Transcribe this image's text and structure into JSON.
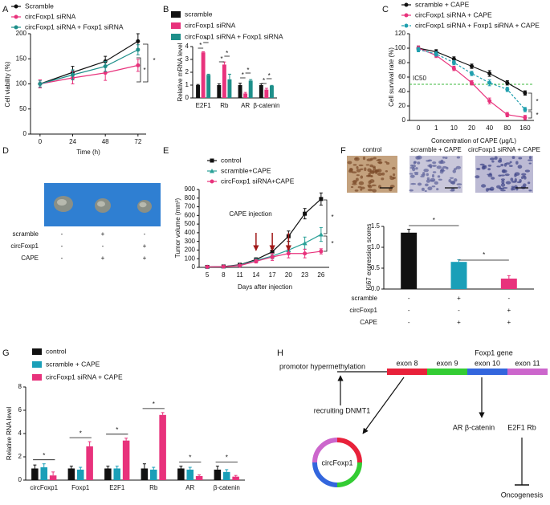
{
  "panel_labels": [
    "A",
    "B",
    "C",
    "D",
    "E",
    "F",
    "G",
    "H"
  ],
  "chart_data": [
    {
      "type": "line",
      "legend": "top",
      "y_label": "Cell viability (%)",
      "x_label": "Time (h)",
      "x": [
        0,
        24,
        48,
        72
      ],
      "xlim": [
        -7,
        78
      ],
      "xticks": [
        0,
        24,
        48,
        72
      ],
      "ylim": [
        0,
        200
      ],
      "yticks": [
        0,
        50,
        100,
        150,
        200
      ],
      "series": [
        {
          "name": "Scramble",
          "color": "#111111",
          "marker": "circle",
          "values": [
            100,
            123,
            145,
            185
          ],
          "errors": [
            8,
            12,
            10,
            15
          ]
        },
        {
          "name": "circFoxp1 siRNA",
          "color": "#e8327c",
          "marker": "circle",
          "values": [
            100,
            112,
            122,
            137
          ],
          "errors": [
            8,
            12,
            15,
            12
          ]
        },
        {
          "name": "circFoxp1 siRNA + Foxp1 siRNA",
          "color": "#1e8f8a",
          "marker": "circle",
          "values": [
            100,
            118,
            135,
            168
          ],
          "errors": [
            6,
            10,
            10,
            10
          ]
        }
      ],
      "significance": [
        "*",
        "*"
      ]
    },
    {
      "type": "bar",
      "legend": "top",
      "y_label": "Relative mRNA level",
      "categories": [
        "E2F1",
        "Rb",
        "AR",
        "β-catenin"
      ],
      "ylim": [
        0,
        4
      ],
      "yticks": [
        0,
        1,
        2,
        3,
        4
      ],
      "series": [
        {
          "name": "scramble",
          "color": "#111111",
          "values": [
            1,
            1,
            1,
            1
          ],
          "errors": [
            0.05,
            0.1,
            0.15,
            0.1
          ]
        },
        {
          "name": "circFoxp1 siRNA",
          "color": "#e8327c",
          "values": [
            3.55,
            2.6,
            0.35,
            0.65
          ],
          "errors": [
            0.05,
            0.2,
            0.08,
            0.1
          ]
        },
        {
          "name": "circFoxp1 siRNA + Foxp1 siRNA",
          "color": "#1e8f8a",
          "values": [
            1.8,
            1.45,
            1.35,
            0.95
          ],
          "errors": [
            0.05,
            0.4,
            0.08,
            0.03
          ]
        }
      ],
      "significance": [
        "*",
        "*",
        "*",
        "*",
        "*",
        "*",
        "*",
        "*"
      ]
    },
    {
      "type": "line",
      "legend": "top",
      "y_label": "Cell survival rate (%)",
      "x_label": "Concentration of CAPE (μg/L)",
      "categories": [
        "0",
        "1",
        "10",
        "20",
        "40",
        "80",
        "160"
      ],
      "ylim": [
        0,
        120
      ],
      "yticks": [
        0,
        20,
        40,
        60,
        80,
        100,
        120
      ],
      "reference_line": {
        "value": 50,
        "label": "IC50",
        "color": "#3cb83c"
      },
      "series": [
        {
          "name": "scramble + CAPE",
          "color": "#111111",
          "marker": "circle",
          "values": [
            100,
            95,
            85,
            75,
            65,
            52,
            38
          ],
          "errors": [
            3,
            3,
            3,
            3,
            4,
            3,
            3
          ]
        },
        {
          "name": "circFoxp1 siRNA + CAPE",
          "color": "#e8327c",
          "marker": "circle",
          "values": [
            100,
            90,
            72,
            52,
            27,
            8,
            4
          ],
          "errors": [
            3,
            3,
            3,
            3,
            4,
            3,
            3
          ]
        },
        {
          "name": "circFoxp1 siRNA + Foxp1 siRNA + CAPE",
          "color": "#1f9fae",
          "marker": "circle",
          "dashed": true,
          "values": [
            98,
            92,
            80,
            65,
            52,
            43,
            15
          ],
          "errors": [
            3,
            3,
            3,
            3,
            4,
            3,
            3
          ]
        }
      ],
      "significance": [
        "*",
        "*"
      ]
    },
    {
      "type": "line",
      "legend": "top",
      "y_label": "Tumor volume (mm³)",
      "x_label": "Days after injection",
      "categories": [
        "5",
        "8",
        "11",
        "14",
        "17",
        "20",
        "23",
        "26"
      ],
      "ylim": [
        0,
        900
      ],
      "yticks": [
        0,
        100,
        200,
        300,
        400,
        500,
        600,
        700,
        800,
        900
      ],
      "annotation": "CAPE injection",
      "series": [
        {
          "name": "control",
          "color": "#111111",
          "marker": "square",
          "values": [
            5,
            10,
            30,
            90,
            180,
            360,
            620,
            790
          ],
          "errors": [
            3,
            5,
            10,
            20,
            40,
            60,
            60,
            70
          ]
        },
        {
          "name": "scramble+CAPE",
          "color": "#2aa198",
          "marker": "triangle",
          "values": [
            5,
            10,
            25,
            80,
            130,
            200,
            280,
            380
          ],
          "errors": [
            3,
            5,
            10,
            20,
            30,
            50,
            70,
            80
          ]
        },
        {
          "name": "circFoxp1 siRNA+CAPE",
          "color": "#e8327c",
          "marker": "circle",
          "values": [
            5,
            8,
            20,
            70,
            120,
            160,
            160,
            185
          ],
          "errors": [
            3,
            5,
            10,
            20,
            40,
            50,
            50,
            30
          ]
        }
      ],
      "significance": [
        "*",
        "*"
      ]
    },
    {
      "type": "bar",
      "y_label": "Ki67 expression scores",
      "image_labels": [
        "control",
        "scramble + CAPE",
        "circFoxp1 siRNA + CAPE"
      ],
      "categories": [
        null,
        null,
        null
      ],
      "values": [
        1.35,
        0.65,
        0.25
      ],
      "errors": [
        0.08,
        0.05,
        0.07
      ],
      "colors": [
        "#111111",
        "#1a9fb8",
        "#e8327c"
      ],
      "ylim": [
        0,
        1.5
      ],
      "yticks": [
        {
          "value": 0,
          "label": "0.0"
        },
        0.5,
        {
          "value": 1,
          "label": "1.0"
        },
        1.5
      ],
      "conditions": [
        {
          "label": "scramble",
          "signs": [
            "-",
            "+",
            "-"
          ]
        },
        {
          "label": "circFoxp1",
          "signs": [
            "-",
            "-",
            "+"
          ]
        },
        {
          "label": "CAPE",
          "signs": [
            "-",
            "+",
            "+"
          ]
        }
      ],
      "significance": [
        "*",
        "*"
      ]
    },
    {
      "type": "bar",
      "legend": "top",
      "y_label": "Relative RNA level",
      "categories": [
        "circFoxp1",
        "Foxp1",
        "E2F1",
        "Rb",
        "AR",
        "β-catenin"
      ],
      "ylim": [
        0,
        8
      ],
      "yticks": [
        0,
        2,
        4,
        6,
        8
      ],
      "series": [
        {
          "name": "control",
          "color": "#111111",
          "values": [
            1,
            1,
            1,
            1,
            1,
            0.9
          ],
          "errors": [
            0.3,
            0.2,
            0.2,
            0.4,
            0.2,
            0.3
          ]
        },
        {
          "name": "scramble + CAPE",
          "color": "#1a9fb8",
          "values": [
            1.1,
            0.9,
            1.0,
            0.9,
            0.9,
            0.7
          ],
          "errors": [
            0.3,
            0.2,
            0.2,
            0.2,
            0.2,
            0.2
          ]
        },
        {
          "name": "circFoxp1 siRNA + CAPE",
          "color": "#e8327c",
          "values": [
            0.4,
            2.9,
            3.4,
            5.6,
            0.35,
            0.3
          ],
          "errors": [
            0.3,
            0.4,
            0.2,
            0.2,
            0.1,
            0.1
          ]
        }
      ],
      "significance": [
        "*",
        "*",
        "*",
        "*",
        "*",
        "*"
      ]
    }
  ],
  "panel_d": {
    "conditions": [
      {
        "label": "scramble",
        "signs": [
          "-",
          "+",
          "-"
        ]
      },
      {
        "label": "circFoxp1",
        "signs": [
          "-",
          "-",
          "+"
        ]
      },
      {
        "label": "CAPE",
        "signs": [
          "-",
          "+",
          "+"
        ]
      }
    ]
  },
  "diagram": {
    "gene": "Foxp1 gene",
    "exons": [
      "exon 8",
      "exon 9",
      "exon 10",
      "exon 11"
    ],
    "promoter": "promotor hypermethylation",
    "recruiting": "recruiting DNMT1",
    "circ": "circFoxp1",
    "targets_left": "AR β-catenin",
    "targets_right": "E2F1 Rb",
    "outcome": "Oncogenesis"
  }
}
